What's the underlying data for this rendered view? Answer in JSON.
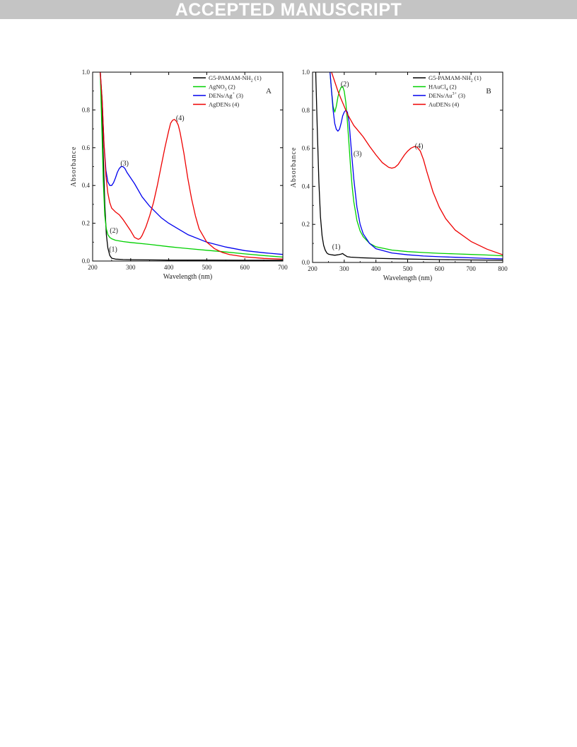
{
  "banner": {
    "text": "ACCEPTED MANUSCRIPT"
  },
  "chart_data": [
    {
      "type": "line",
      "panel_label": "A",
      "xlabel": "Wavelength (nm)",
      "ylabel": "Absorbance",
      "xlim": [
        200,
        700
      ],
      "ylim": [
        0,
        1.0
      ],
      "xticks": [
        200,
        300,
        400,
        500,
        600,
        700
      ],
      "yticks": [
        0.0,
        0.2,
        0.4,
        0.6,
        0.8,
        1.0
      ],
      "xtick_labels": [
        "200",
        "300",
        "400",
        "500",
        "600",
        "700"
      ],
      "ytick_labels": [
        "0.0",
        "0.2",
        "0.4",
        "0.6",
        "0.8",
        "1.0"
      ],
      "grid": false,
      "legend_position": "top-right",
      "legend": [
        {
          "label": "G5-PAMAM-NH",
          "sub": "2",
          "sup": "",
          "suffix": " (1)",
          "color": "#000000"
        },
        {
          "label": "AgNO",
          "sub": "3",
          "sup": "",
          "suffix": " (2)",
          "color": "#00d000"
        },
        {
          "label": "DENs/Ag",
          "sub": "",
          "sup": "+",
          "suffix": " (3)",
          "color": "#0000ee"
        },
        {
          "label": "AgDENs (4)",
          "sub": "",
          "sup": "",
          "suffix": "",
          "color": "#ee0000"
        }
      ],
      "series": [
        {
          "color": "#000000",
          "x": [
            220,
            224,
            228,
            232,
            236,
            240,
            245,
            250,
            260,
            280,
            300,
            350,
            400,
            500,
            600,
            700
          ],
          "y": [
            1.0,
            0.82,
            0.55,
            0.3,
            0.14,
            0.07,
            0.03,
            0.015,
            0.01,
            0.008,
            0.007,
            0.006,
            0.005,
            0.005,
            0.004,
            0.004
          ]
        },
        {
          "color": "#00d000",
          "x": [
            220,
            224,
            228,
            232,
            236,
            240,
            245,
            250,
            260,
            280,
            300,
            350,
            400,
            450,
            500,
            550,
            600,
            650,
            700
          ],
          "y": [
            1.0,
            0.72,
            0.42,
            0.24,
            0.17,
            0.14,
            0.125,
            0.118,
            0.11,
            0.103,
            0.098,
            0.088,
            0.076,
            0.066,
            0.057,
            0.048,
            0.038,
            0.029,
            0.021
          ]
        },
        {
          "color": "#0000ee",
          "x": [
            220,
            225,
            230,
            235,
            240,
            245,
            250,
            255,
            260,
            265,
            270,
            275,
            280,
            285,
            290,
            300,
            310,
            330,
            350,
            380,
            400,
            450,
            500,
            550,
            600,
            650,
            700
          ],
          "y": [
            1.0,
            0.85,
            0.62,
            0.48,
            0.42,
            0.4,
            0.4,
            0.415,
            0.44,
            0.47,
            0.49,
            0.5,
            0.5,
            0.49,
            0.47,
            0.44,
            0.41,
            0.34,
            0.29,
            0.23,
            0.2,
            0.14,
            0.1,
            0.074,
            0.055,
            0.044,
            0.035
          ]
        },
        {
          "color": "#ee0000",
          "x": [
            220,
            225,
            230,
            235,
            240,
            245,
            250,
            260,
            270,
            280,
            290,
            300,
            310,
            320,
            325,
            330,
            340,
            350,
            360,
            370,
            380,
            390,
            400,
            405,
            410,
            415,
            420,
            425,
            430,
            440,
            450,
            460,
            470,
            480,
            500,
            520,
            540,
            560,
            600,
            650,
            700
          ],
          "y": [
            1.0,
            0.85,
            0.62,
            0.45,
            0.36,
            0.31,
            0.28,
            0.26,
            0.245,
            0.22,
            0.19,
            0.16,
            0.125,
            0.115,
            0.12,
            0.135,
            0.18,
            0.24,
            0.31,
            0.4,
            0.5,
            0.6,
            0.69,
            0.73,
            0.745,
            0.75,
            0.74,
            0.72,
            0.68,
            0.57,
            0.44,
            0.33,
            0.24,
            0.17,
            0.1,
            0.066,
            0.046,
            0.034,
            0.022,
            0.014,
            0.01
          ]
        }
      ],
      "annotations": [
        {
          "text": "(1)",
          "x": 254,
          "y": 0.05
        },
        {
          "text": "(2)",
          "x": 256,
          "y": 0.15
        },
        {
          "text": "(3)",
          "x": 284,
          "y": 0.505
        },
        {
          "text": "(4)",
          "x": 430,
          "y": 0.745
        }
      ]
    },
    {
      "type": "line",
      "panel_label": "B",
      "xlabel": "Wavelength (nm)",
      "ylabel": "Absorbance",
      "xlim": [
        200,
        800
      ],
      "ylim": [
        0,
        1.0
      ],
      "xticks": [
        200,
        300,
        400,
        500,
        600,
        700,
        800
      ],
      "yticks": [
        0.0,
        0.2,
        0.4,
        0.6,
        0.8,
        1.0
      ],
      "xtick_labels": [
        "200",
        "300",
        "400",
        "500",
        "600",
        "700",
        "800"
      ],
      "ytick_labels": [
        "0.0",
        "0.2",
        "0.4",
        "0.6",
        "0.8",
        "1.0"
      ],
      "grid": false,
      "legend_position": "top-right",
      "legend": [
        {
          "label": "G5-PAMAM-NH",
          "sub": "2",
          "sup": "",
          "suffix": " (1)",
          "color": "#000000"
        },
        {
          "label": "HAuCl",
          "sub": "4",
          "sup": "",
          "suffix": " (2)",
          "color": "#00d000"
        },
        {
          "label": "DENs/Au",
          "sub": "",
          "sup": "3+",
          "suffix": " (3)",
          "color": "#0000ee"
        },
        {
          "label": "AuDENs (4)",
          "sub": "",
          "sup": "",
          "suffix": "",
          "color": "#ee0000"
        }
      ],
      "series": [
        {
          "color": "#000000",
          "x": [
            210,
            215,
            220,
            225,
            230,
            235,
            240,
            245,
            250,
            260,
            270,
            280,
            290,
            295,
            300,
            310,
            320,
            350,
            400,
            500,
            600,
            700,
            800
          ],
          "y": [
            1.0,
            0.7,
            0.42,
            0.24,
            0.14,
            0.09,
            0.065,
            0.05,
            0.044,
            0.04,
            0.038,
            0.04,
            0.044,
            0.047,
            0.04,
            0.03,
            0.028,
            0.025,
            0.022,
            0.018,
            0.015,
            0.013,
            0.012
          ]
        },
        {
          "color": "#00d000",
          "x": [
            255,
            260,
            265,
            270,
            275,
            280,
            285,
            290,
            295,
            300,
            305,
            310,
            315,
            320,
            325,
            330,
            340,
            350,
            360,
            380,
            400,
            450,
            500,
            550,
            600,
            650,
            700,
            750,
            800
          ],
          "y": [
            1.0,
            0.9,
            0.82,
            0.79,
            0.82,
            0.87,
            0.9,
            0.92,
            0.925,
            0.9,
            0.84,
            0.74,
            0.62,
            0.5,
            0.4,
            0.32,
            0.22,
            0.165,
            0.135,
            0.1,
            0.082,
            0.065,
            0.057,
            0.052,
            0.048,
            0.045,
            0.042,
            0.039,
            0.035
          ]
        },
        {
          "color": "#0000ee",
          "x": [
            255,
            260,
            265,
            270,
            275,
            280,
            285,
            290,
            295,
            300,
            305,
            310,
            315,
            320,
            325,
            330,
            340,
            350,
            360,
            380,
            400,
            450,
            500,
            550,
            600,
            650,
            700,
            750,
            800
          ],
          "y": [
            1.0,
            0.9,
            0.8,
            0.73,
            0.7,
            0.69,
            0.7,
            0.73,
            0.77,
            0.79,
            0.8,
            0.79,
            0.74,
            0.64,
            0.54,
            0.44,
            0.29,
            0.2,
            0.15,
            0.1,
            0.072,
            0.05,
            0.04,
            0.034,
            0.03,
            0.027,
            0.024,
            0.021,
            0.019
          ]
        },
        {
          "color": "#ee0000",
          "x": [
            260,
            270,
            280,
            290,
            300,
            310,
            320,
            330,
            340,
            350,
            360,
            380,
            400,
            420,
            440,
            450,
            460,
            470,
            480,
            490,
            500,
            510,
            520,
            525,
            530,
            540,
            550,
            560,
            580,
            600,
            620,
            650,
            700,
            750,
            800
          ],
          "y": [
            1.0,
            0.95,
            0.9,
            0.86,
            0.82,
            0.78,
            0.75,
            0.72,
            0.7,
            0.68,
            0.66,
            0.61,
            0.565,
            0.525,
            0.5,
            0.495,
            0.5,
            0.515,
            0.54,
            0.565,
            0.585,
            0.6,
            0.608,
            0.609,
            0.605,
            0.585,
            0.54,
            0.48,
            0.37,
            0.29,
            0.23,
            0.17,
            0.11,
            0.07,
            0.04
          ]
        }
      ],
      "annotations": [
        {
          "text": "(1)",
          "x": 275,
          "y": 0.07
        },
        {
          "text": "(2)",
          "x": 302,
          "y": 0.925
        },
        {
          "text": "(3)",
          "x": 342,
          "y": 0.56
        },
        {
          "text": "(4)",
          "x": 536,
          "y": 0.6
        }
      ]
    }
  ]
}
